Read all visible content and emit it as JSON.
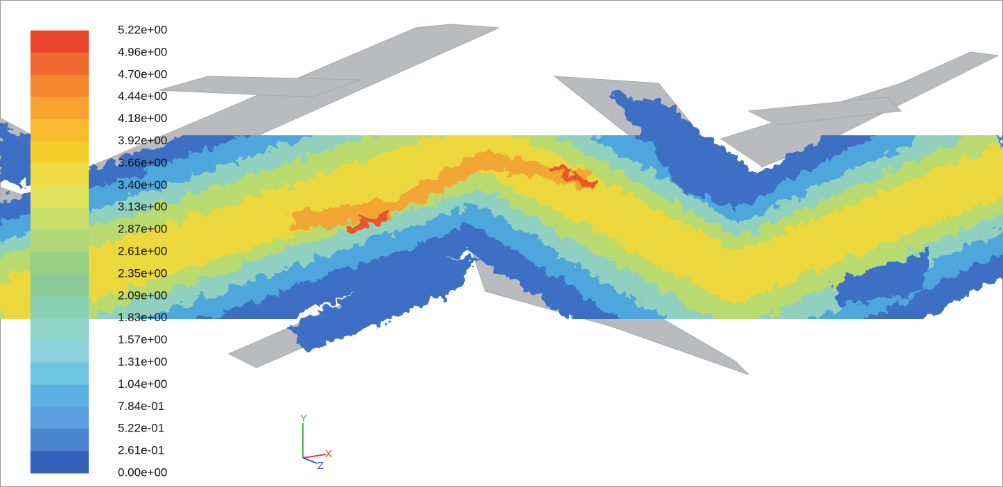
{
  "legend": {
    "labels": [
      "5.22e+00",
      "4.96e+00",
      "4.70e+00",
      "4.44e+00",
      "4.18e+00",
      "3.92e+00",
      "3.66e+00",
      "3.40e+00",
      "3.13e+00",
      "2.87e+00",
      "2.61e+00",
      "2.35e+00",
      "2.09e+00",
      "1.83e+00",
      "1.57e+00",
      "1.31e+00",
      "1.04e+00",
      "7.84e-01",
      "5.22e-01",
      "2.61e-01",
      "0.00e+00"
    ]
  },
  "axes": {
    "y": "Y",
    "x": "X",
    "z": "Z"
  }
}
